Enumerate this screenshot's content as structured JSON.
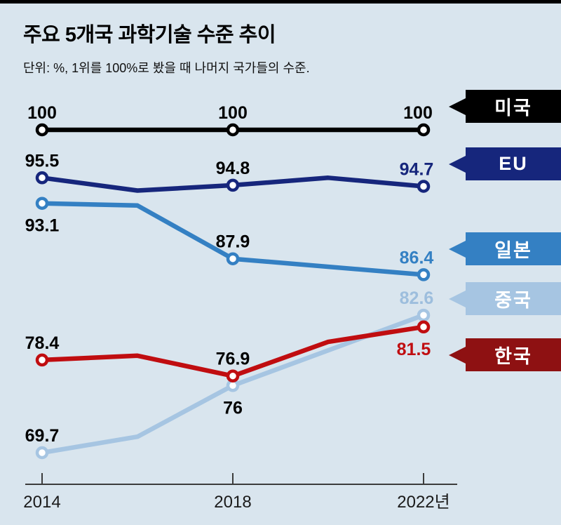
{
  "page": {
    "background": "#d9e5ee",
    "top_bar_color": "#000000"
  },
  "chart_data": {
    "type": "line",
    "title": "주요 5개국 과학기술 수준 추이",
    "subtitle": "단위: %, 1위를 100%로 봤을 때 나머지 국가들의 수준.",
    "unit": "%",
    "ylim": [
      66,
      103
    ],
    "x_axis": {
      "ticks": [
        {
          "year": 2014,
          "label": "2014"
        },
        {
          "year": 2018,
          "label": "2018"
        },
        {
          "year": 2022,
          "label": "2022년"
        }
      ]
    },
    "legend_position": "right",
    "series": [
      {
        "id": "usa",
        "name": "미국",
        "line_color": "#000000",
        "box_color": "#000000",
        "box_text_color": "#ffffff",
        "points": [
          {
            "x": 2014,
            "v": 100,
            "marker": true,
            "label": "100",
            "label_pos": "above"
          },
          {
            "x": 2018,
            "v": 100,
            "marker": true,
            "label": "100",
            "label_pos": "above"
          },
          {
            "x": 2022,
            "v": 100,
            "marker": true,
            "label": "100",
            "label_pos": "above",
            "label_dx": -8
          }
        ]
      },
      {
        "id": "eu",
        "name": "EU",
        "line_color": "#16267c",
        "box_color": "#16267c",
        "box_text_color": "#ffffff",
        "points": [
          {
            "x": 2014,
            "v": 95.5,
            "marker": true,
            "label": "95.5",
            "label_pos": "above"
          },
          {
            "x": 2016,
            "v": 94.3,
            "marker": false
          },
          {
            "x": 2018,
            "v": 94.8,
            "marker": true,
            "label": "94.8",
            "label_pos": "above"
          },
          {
            "x": 2020,
            "v": 95.5,
            "marker": false
          },
          {
            "x": 2022,
            "v": 94.7,
            "marker": true,
            "label": "94.7",
            "label_pos": "above",
            "label_color": "#16267c",
            "label_dx": -10
          }
        ]
      },
      {
        "id": "japan",
        "name": "일본",
        "line_color": "#3480c3",
        "box_color": "#3480c3",
        "box_text_color": "#ffffff",
        "points": [
          {
            "x": 2014,
            "v": 93.1,
            "marker": true,
            "label": "93.1",
            "label_pos": "below"
          },
          {
            "x": 2016,
            "v": 92.9,
            "marker": false
          },
          {
            "x": 2018,
            "v": 87.9,
            "marker": true,
            "label": "87.9",
            "label_pos": "above"
          },
          {
            "x": 2022,
            "v": 86.4,
            "marker": true,
            "label": "86.4",
            "label_pos": "above",
            "label_color": "#3480c3",
            "label_dx": -10
          }
        ]
      },
      {
        "id": "china",
        "name": "중국",
        "line_color": "#a6c5e2",
        "box_color": "#a6c5e2",
        "box_text_color": "#ffffff",
        "points": [
          {
            "x": 2014,
            "v": 69.7,
            "marker": true,
            "label": "69.7",
            "label_pos": "above"
          },
          {
            "x": 2016,
            "v": 71.2,
            "marker": false
          },
          {
            "x": 2018,
            "v": 76,
            "marker": true,
            "label": "76",
            "label_pos": "below"
          },
          {
            "x": 2022,
            "v": 82.6,
            "marker": true,
            "label": "82.6",
            "label_pos": "above",
            "label_color": "#9dbedd",
            "label_dx": -10
          }
        ]
      },
      {
        "id": "korea",
        "name": "한국",
        "line_color": "#c00d10",
        "box_color": "#8e1112",
        "box_text_color": "#ffffff",
        "points": [
          {
            "x": 2014,
            "v": 78.4,
            "marker": true,
            "label": "78.4",
            "label_pos": "above"
          },
          {
            "x": 2016,
            "v": 78.8,
            "marker": false
          },
          {
            "x": 2018,
            "v": 76.9,
            "marker": true,
            "label": "76.9",
            "label_pos": "above"
          },
          {
            "x": 2020,
            "v": 80.1,
            "marker": false
          },
          {
            "x": 2022,
            "v": 81.5,
            "marker": true,
            "label": "81.5",
            "label_pos": "below",
            "label_color": "#c00d10",
            "label_dx": -14
          }
        ]
      }
    ]
  }
}
